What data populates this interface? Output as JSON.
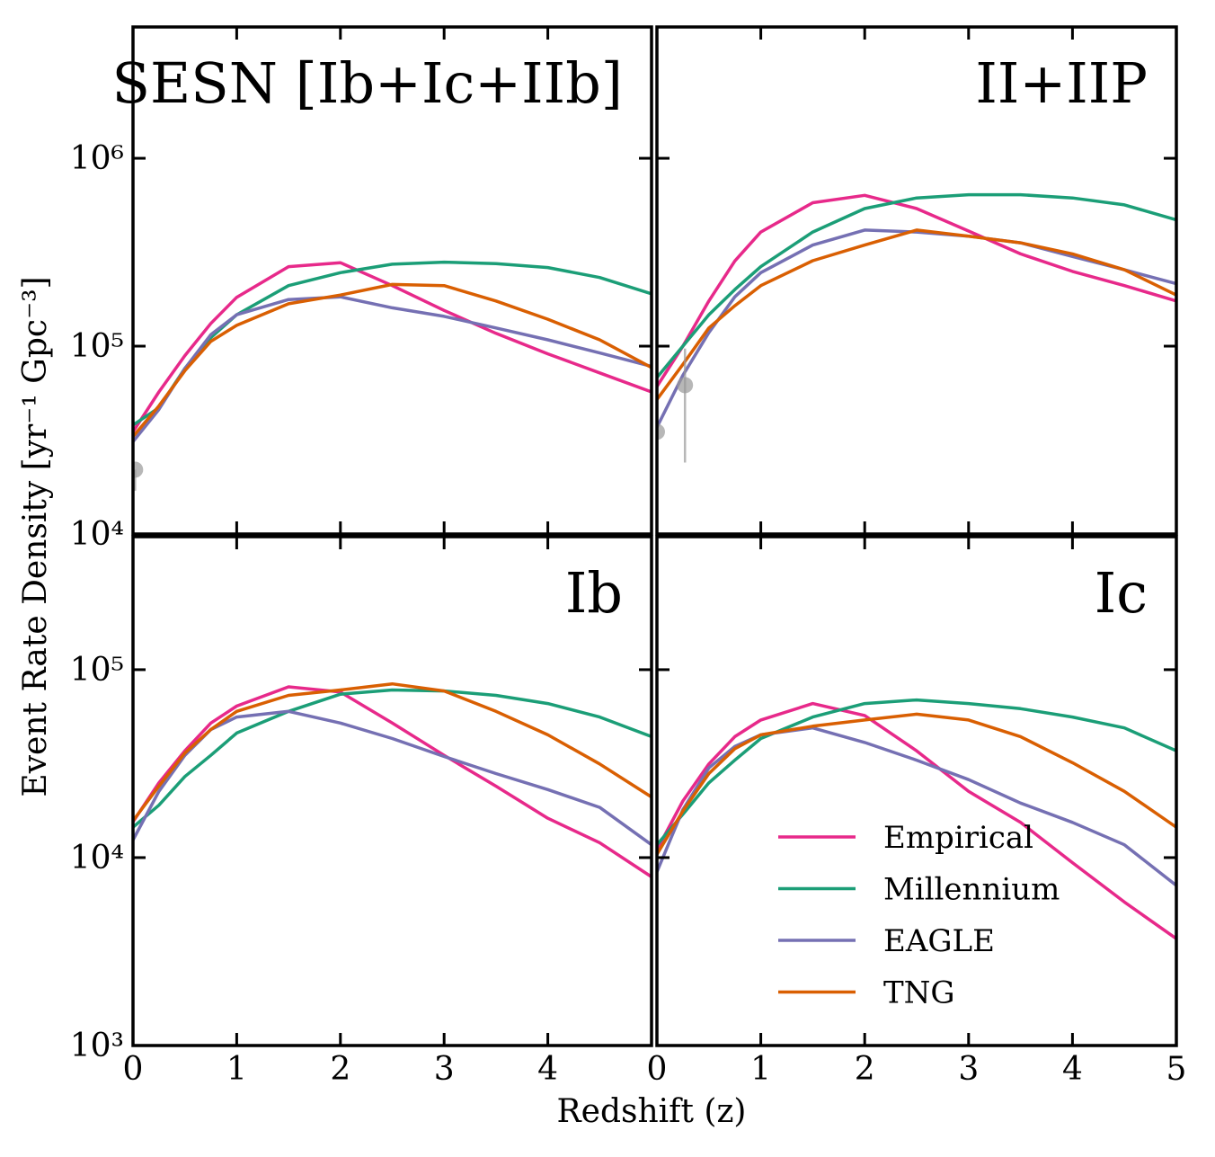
{
  "ylabel": "Event Rate Density [yr⁻¹ Gpc⁻³]",
  "xlabel": "Redshift (z)",
  "chart_data": [
    {
      "type": "line",
      "title": "SESN [Ib+Ic+IIb]",
      "log_y": true,
      "xlim": [
        0,
        5
      ],
      "ylim": [
        10000,
        5000000
      ],
      "yticks": [
        {
          "value": 10000,
          "label": "10⁴"
        },
        {
          "value": 100000,
          "label": "10⁵"
        },
        {
          "value": 1000000,
          "label": "10⁶"
        }
      ],
      "x": [
        0,
        0.25,
        0.5,
        0.75,
        1,
        1.5,
        2,
        2.5,
        3,
        3.5,
        4,
        4.5,
        5
      ],
      "series": [
        {
          "name": "Empirical",
          "color": "#e7298a",
          "values": [
            35000,
            57000,
            89000,
            132000,
            182000,
            265000,
            278000,
            210000,
            155000,
            117000,
            91000,
            72000,
            57000
          ]
        },
        {
          "name": "Millennium",
          "color": "#1b9e77",
          "values": [
            38000,
            47000,
            76000,
            111000,
            147000,
            210000,
            246000,
            273000,
            280000,
            275000,
            262000,
            232000,
            190000
          ]
        },
        {
          "name": "EAGLE",
          "color": "#7570b3",
          "values": [
            31000,
            46000,
            76000,
            115000,
            147000,
            177000,
            183000,
            160000,
            144000,
            125000,
            108000,
            92000,
            78000
          ]
        },
        {
          "name": "TNG",
          "color": "#d95f02",
          "values": [
            33000,
            48000,
            74000,
            106000,
            129000,
            168000,
            187000,
            213000,
            210000,
            174000,
            139000,
            108000,
            77000
          ]
        }
      ],
      "observed": {
        "color": "#999999",
        "x": [
          0.02
        ],
        "values": [
          22000
        ],
        "lower": [
          17000
        ],
        "upper": [
          null
        ]
      }
    },
    {
      "type": "line",
      "title": "II+IIP",
      "log_y": true,
      "xlim": [
        0,
        5
      ],
      "ylim": [
        10000,
        5000000
      ],
      "x": [
        0,
        0.25,
        0.5,
        0.75,
        1,
        1.5,
        2,
        2.5,
        3,
        3.5,
        4,
        4.5,
        5
      ],
      "series": [
        {
          "name": "Empirical",
          "color": "#e7298a",
          "values": [
            61000,
            100000,
            174000,
            284000,
            405000,
            580000,
            635000,
            540000,
            410000,
            310000,
            250000,
            210000,
            174000
          ]
        },
        {
          "name": "Millennium",
          "color": "#1b9e77",
          "values": [
            68000,
            100000,
            147000,
            200000,
            265000,
            405000,
            540000,
            615000,
            640000,
            640000,
            615000,
            565000,
            470000
          ]
        },
        {
          "name": "EAGLE",
          "color": "#7570b3",
          "values": [
            37000,
            70000,
            118000,
            183000,
            246000,
            345000,
            415000,
            405000,
            385000,
            355000,
            300000,
            255000,
            215000
          ]
        },
        {
          "name": "TNG",
          "color": "#d95f02",
          "values": [
            52000,
            80000,
            125000,
            164000,
            210000,
            285000,
            345000,
            415000,
            385000,
            355000,
            310000,
            255000,
            187000
          ]
        }
      ],
      "observed": {
        "color": "#999999",
        "x": [
          0,
          0.27
        ],
        "values": [
          35000,
          62000
        ],
        "lower": [
          null,
          24000
        ],
        "upper": [
          null,
          97000
        ]
      }
    },
    {
      "type": "line",
      "title": "Ib",
      "log_y": true,
      "xlim": [
        0,
        5
      ],
      "ylim": [
        1000,
        510000
      ],
      "xticks": [
        0,
        1,
        2,
        3,
        4
      ],
      "yticks": [
        {
          "value": 1000,
          "label": "10³"
        },
        {
          "value": 10000,
          "label": "10⁴"
        },
        {
          "value": 100000,
          "label": "10⁵"
        }
      ],
      "x": [
        0,
        0.25,
        0.5,
        0.75,
        1,
        1.5,
        2,
        2.5,
        3,
        3.5,
        4,
        4.5,
        5
      ],
      "series": [
        {
          "name": "Empirical",
          "color": "#e7298a",
          "values": [
            15500,
            25000,
            37000,
            52000,
            64000,
            81000,
            76000,
            52000,
            35000,
            24000,
            16200,
            12000,
            7900
          ]
        },
        {
          "name": "Millennium",
          "color": "#1b9e77",
          "values": [
            14500,
            19000,
            27000,
            35000,
            46000,
            60000,
            74000,
            78000,
            77000,
            73000,
            66000,
            56000,
            44000
          ]
        },
        {
          "name": "EAGLE",
          "color": "#7570b3",
          "values": [
            12400,
            22500,
            35000,
            48000,
            56000,
            60000,
            52000,
            43000,
            34500,
            28000,
            23000,
            18500,
            11700
          ]
        },
        {
          "name": "TNG",
          "color": "#d95f02",
          "values": [
            15700,
            24000,
            36000,
            48000,
            60000,
            73000,
            78000,
            84000,
            77000,
            60000,
            45000,
            31500,
            21000
          ]
        }
      ]
    },
    {
      "type": "line",
      "title": "Ic",
      "log_y": true,
      "xlim": [
        0,
        5
      ],
      "ylim": [
        1000,
        510000
      ],
      "xticks": [
        0,
        1,
        2,
        3,
        4,
        5
      ],
      "legend": "lower right",
      "x": [
        0,
        0.25,
        0.5,
        0.75,
        1,
        1.5,
        2,
        2.5,
        3,
        3.5,
        4,
        4.5,
        5
      ],
      "series": [
        {
          "name": "Empirical",
          "color": "#e7298a",
          "values": [
            11000,
            20000,
            31500,
            44000,
            54000,
            66000,
            57000,
            37000,
            22500,
            15400,
            9400,
            5800,
            3700
          ]
        },
        {
          "name": "Millennium",
          "color": "#1b9e77",
          "values": [
            11700,
            17000,
            25000,
            33000,
            43000,
            56000,
            66000,
            69000,
            66000,
            62000,
            56000,
            49000,
            37000
          ]
        },
        {
          "name": "EAGLE",
          "color": "#7570b3",
          "values": [
            8400,
            18000,
            30000,
            39000,
            45000,
            49000,
            41000,
            33000,
            26000,
            19500,
            15400,
            11700,
            7100
          ]
        },
        {
          "name": "TNG",
          "color": "#d95f02",
          "values": [
            10400,
            17700,
            28000,
            38000,
            45000,
            50000,
            54000,
            58000,
            54000,
            44000,
            32000,
            22500,
            14500
          ]
        }
      ]
    }
  ]
}
